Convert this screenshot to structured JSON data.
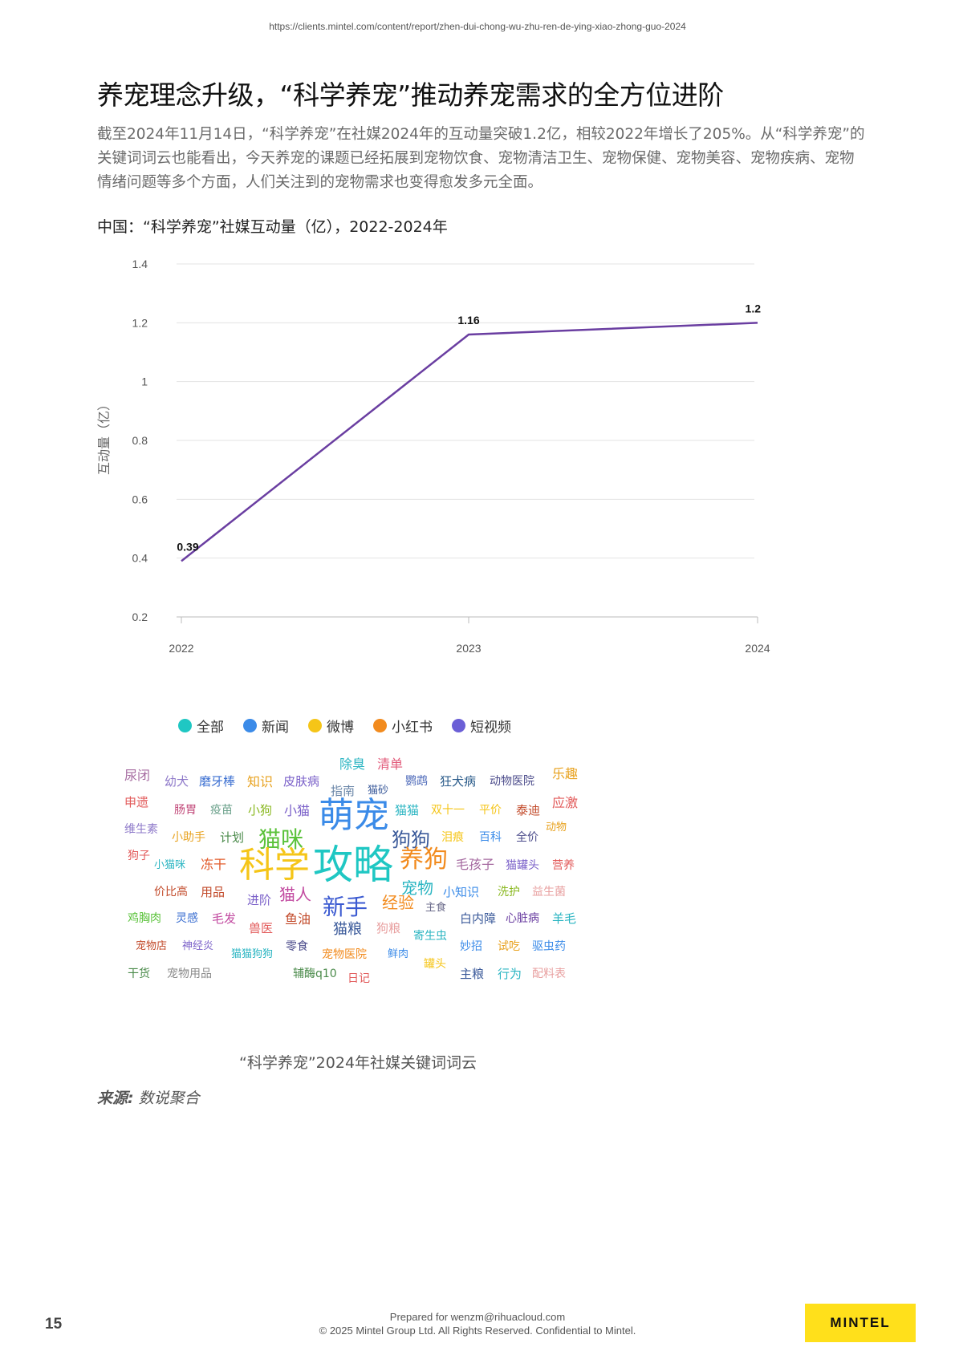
{
  "header": {
    "url": "https://clients.mintel.com/content/report/zhen-dui-chong-wu-zhu-ren-de-ying-xiao-zhong-guo-2024"
  },
  "title": "养宠理念升级，“科学养宠”推动养宠需求的全方位进阶",
  "body_text": "截至2024年11月14日，“科学养宠”在社媒2024年的互动量突破1.2亿，相较2022年增长了205%。从“科学养宠”的关键词词云也能看出，今天养宠的课题已经拓展到宠物饮食、宠物清洁卫生、宠物保健、宠物美容、宠物疾病、宠物情绪问题等多个方面，人们关注到的宠物需求也变得愈发多元全面。",
  "chart_title": "中国：“科学养宠”社媒互动量（亿），2022-2024年",
  "chart_data": {
    "type": "line",
    "x": [
      "2022",
      "2023",
      "2024"
    ],
    "series": [
      {
        "values": [
          0.39,
          1.16,
          1.2
        ],
        "color": "#6a3ea1"
      }
    ],
    "data_labels": [
      "0.39",
      "1.16",
      "1.2"
    ],
    "ylabel": "互动量（亿）",
    "xlabel": "",
    "ylim": [
      0.2,
      1.4
    ],
    "yticks": [
      "1.4",
      "1.2",
      "1",
      "0.8",
      "0.6",
      "0.4",
      "0.2"
    ],
    "grid": true
  },
  "legend": [
    {
      "label": "全部",
      "color": "#1fc7c3"
    },
    {
      "label": "新闻",
      "color": "#3b8be8"
    },
    {
      "label": "微博",
      "color": "#f5c518"
    },
    {
      "label": "小红书",
      "color": "#f28b1e"
    },
    {
      "label": "短视频",
      "color": "#6b5fd6"
    }
  ],
  "word_cloud": [
    {
      "text": "尿闭",
      "color": "#a56aa0"
    },
    {
      "text": "幼犬",
      "color": "#8e79c9"
    },
    {
      "text": "磨牙棒",
      "color": "#3b6fd1"
    },
    {
      "text": "知识",
      "color": "#e8a21f"
    },
    {
      "text": "皮肤病",
      "color": "#7b61c9"
    },
    {
      "text": "除臭",
      "color": "#2bb5c2"
    },
    {
      "text": "清单",
      "color": "#e25a7a"
    },
    {
      "text": "乐趣",
      "color": "#e8a21f"
    },
    {
      "text": "指南",
      "color": "#6a86a8"
    },
    {
      "text": "猫砂",
      "color": "#3b5a9a"
    },
    {
      "text": "鹦鹉",
      "color": "#4a67b8"
    },
    {
      "text": "狂犬病",
      "color": "#2a5b8a"
    },
    {
      "text": "动物医院",
      "color": "#4a4a8a"
    },
    {
      "text": "申遗",
      "color": "#e25a5a"
    },
    {
      "text": "应激",
      "color": "#e25a5a"
    },
    {
      "text": "肠胃",
      "color": "#c24a7a"
    },
    {
      "text": "疫苗",
      "color": "#6aa08a"
    },
    {
      "text": "小狗",
      "color": "#8ab820"
    },
    {
      "text": "小猫",
      "color": "#7b61c9"
    },
    {
      "text": "萌宠",
      "color": "#3b8be8"
    },
    {
      "text": "猫猫",
      "color": "#2bb5c2"
    },
    {
      "text": "双十一",
      "color": "#f5c518"
    },
    {
      "text": "平价",
      "color": "#f5c518"
    },
    {
      "text": "泰迪",
      "color": "#c24a2a"
    },
    {
      "text": "维生素",
      "color": "#8e79c9"
    },
    {
      "text": "小助手",
      "color": "#e8a21f"
    },
    {
      "text": "计划",
      "color": "#4a8a4a"
    },
    {
      "text": "猫咪",
      "color": "#5ac23a"
    },
    {
      "text": "狗狗",
      "color": "#3b5a9a"
    },
    {
      "text": "泪痕",
      "color": "#f5c518"
    },
    {
      "text": "百科",
      "color": "#3b8be8"
    },
    {
      "text": "全价",
      "color": "#4a4a8a"
    },
    {
      "text": "动物",
      "color": "#e8a21f"
    },
    {
      "text": "狗子",
      "color": "#e25a5a"
    },
    {
      "text": "小猫咪",
      "color": "#2bb5c2"
    },
    {
      "text": "冻干",
      "color": "#e25a2a"
    },
    {
      "text": "科学",
      "color": "#f5c518"
    },
    {
      "text": "攻略",
      "color": "#1fc7c3"
    },
    {
      "text": "养狗",
      "color": "#f28b1e"
    },
    {
      "text": "毛孩子",
      "color": "#a56aa0"
    },
    {
      "text": "猫罐头",
      "color": "#7b61c9"
    },
    {
      "text": "营养",
      "color": "#e25a5a"
    },
    {
      "text": "价比高",
      "color": "#c24a2a"
    },
    {
      "text": "用品",
      "color": "#c24a2a"
    },
    {
      "text": "进阶",
      "color": "#7b61c9"
    },
    {
      "text": "猫人",
      "color": "#c24aa0"
    },
    {
      "text": "宠物",
      "color": "#2bb5c2"
    },
    {
      "text": "小知识",
      "color": "#3b8be8"
    },
    {
      "text": "洗护",
      "color": "#8ab820"
    },
    {
      "text": "益生菌",
      "color": "#e8a0a0"
    },
    {
      "text": "新手",
      "color": "#3b5ad1"
    },
    {
      "text": "经验",
      "color": "#f28b1e"
    },
    {
      "text": "主食",
      "color": "#6a6a8a"
    },
    {
      "text": "鸡胸肉",
      "color": "#5ac23a"
    },
    {
      "text": "灵感",
      "color": "#3b6fd1"
    },
    {
      "text": "毛发",
      "color": "#c24aa0"
    },
    {
      "text": "兽医",
      "color": "#e25a5a"
    },
    {
      "text": "鱼油",
      "color": "#c24a2a"
    },
    {
      "text": "白内障",
      "color": "#3b5a9a"
    },
    {
      "text": "心脏病",
      "color": "#6a3ea1"
    },
    {
      "text": "羊毛",
      "color": "#2bb5c2"
    },
    {
      "text": "猫粮",
      "color": "#3b5a9a"
    },
    {
      "text": "狗粮",
      "color": "#e8a0a0"
    },
    {
      "text": "寄生虫",
      "color": "#2bb5c2"
    },
    {
      "text": "宠物店",
      "color": "#c24a2a"
    },
    {
      "text": "神经炎",
      "color": "#7b61c9"
    },
    {
      "text": "零食",
      "color": "#4a4a8a"
    },
    {
      "text": "猫猫狗狗",
      "color": "#2bb5c2"
    },
    {
      "text": "宠物医院",
      "color": "#f28b1e"
    },
    {
      "text": "鲜肉",
      "color": "#3b8be8"
    },
    {
      "text": "罐头",
      "color": "#f5c518"
    },
    {
      "text": "妙招",
      "color": "#3b8be8"
    },
    {
      "text": "试吃",
      "color": "#e8a21f"
    },
    {
      "text": "驱虫药",
      "color": "#3b8be8"
    },
    {
      "text": "干货",
      "color": "#4a8a4a"
    },
    {
      "text": "宠物用品",
      "color": "#8a8a8a"
    },
    {
      "text": "辅酶q10",
      "color": "#4a8a4a"
    },
    {
      "text": "日记",
      "color": "#e25a5a"
    },
    {
      "text": "主粮",
      "color": "#3b5a9a"
    },
    {
      "text": "行为",
      "color": "#2bb5c2"
    },
    {
      "text": "配料表",
      "color": "#e8a0a0"
    }
  ],
  "cloud_caption": "“科学养宠”2024年社媒关键词词云",
  "source": {
    "label": "来源:",
    "text": "数说聚合"
  },
  "footer": {
    "page_number": "15",
    "prepared_for": "Prepared for wenzm@rihuacloud.com",
    "copyright": "© 2025 Mintel Group Ltd. All Rights Reserved. Confidential to Mintel.",
    "logo_text": "MINTEL"
  }
}
